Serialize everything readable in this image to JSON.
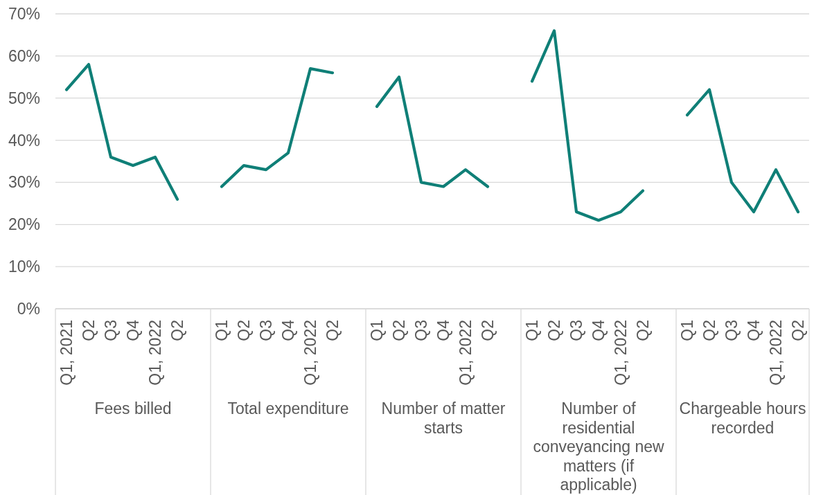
{
  "chart_data": {
    "type": "line",
    "categories": [
      "Q1, 2021",
      "Q2",
      "Q3",
      "Q4",
      "Q1, 2022",
      "Q2",
      null,
      "Q1",
      "Q2",
      "Q3",
      "Q4",
      "Q1, 2022",
      "Q2",
      null,
      "Q1",
      "Q2",
      "Q3",
      "Q4",
      "Q1, 2022",
      "Q2",
      null,
      "Q1",
      "Q2",
      "Q3",
      "Q4",
      "Q1, 2022",
      "Q2",
      null,
      "Q1",
      "Q2",
      "Q3",
      "Q4",
      "Q1, 2022",
      "Q2"
    ],
    "series": [
      {
        "color": "#0f7f77",
        "values": [
          52,
          58,
          36,
          34,
          36,
          26,
          null,
          29,
          34,
          33,
          37,
          57,
          56,
          null,
          48,
          55,
          30,
          29,
          33,
          29,
          null,
          54,
          66,
          23,
          21,
          23,
          28,
          null,
          46,
          52,
          30,
          23,
          33,
          23
        ]
      }
    ],
    "annotations": [
      "Fees billed",
      "Total expenditure",
      "Number of matter starts",
      "Number of residential conveyancing new matters (if applicable)",
      "Chargeable hours recorded"
    ],
    "ylim": [
      0,
      70
    ],
    "yticks": [
      {
        "value": 0,
        "label": "0%"
      },
      {
        "value": 10,
        "label": "10%"
      },
      {
        "value": 20,
        "label": "20%"
      },
      {
        "value": 30,
        "label": "30%"
      },
      {
        "value": 40,
        "label": "40%"
      },
      {
        "value": 50,
        "label": "50%"
      },
      {
        "value": 60,
        "label": "60%"
      },
      {
        "value": 70,
        "label": "70%"
      }
    ],
    "grid": "y"
  }
}
